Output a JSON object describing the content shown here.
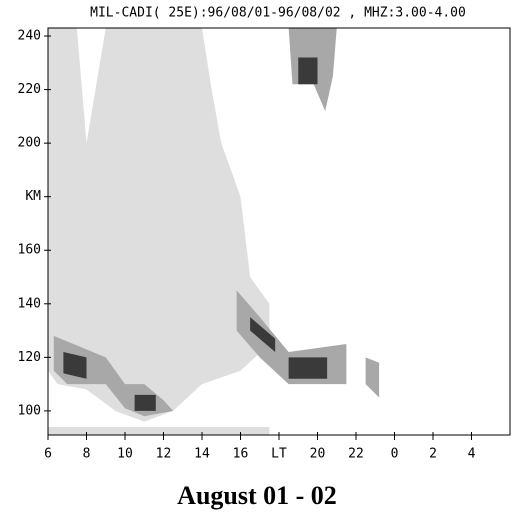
{
  "chart_data": {
    "type": "area",
    "title": "MIL-CADI( 25E):96/08/01-96/08/02 , MHZ:3.00-4.00",
    "caption": "August 01 - 02",
    "xlim": [
      6,
      30
    ],
    "ylim": [
      91,
      243
    ],
    "xticks": [
      6,
      8,
      10,
      12,
      14,
      16,
      {
        "value": 18,
        "label": "LT"
      },
      20,
      22,
      {
        "value": 24,
        "label": "0"
      },
      {
        "value": 26,
        "label": "2"
      },
      {
        "value": 28,
        "label": "4"
      }
    ],
    "yticks": [
      100,
      120,
      140,
      160,
      {
        "value": 180,
        "label": "KM"
      },
      200,
      220,
      240
    ],
    "series": [
      {
        "color": "#dedede",
        "x": [
          6,
          7.5,
          8,
          9,
          14,
          14.5,
          15,
          16,
          16.5,
          17.5,
          17.5,
          16,
          14,
          12.5,
          11,
          9.5,
          8,
          6.5,
          6
        ],
        "y": [
          243,
          243,
          200,
          243,
          243,
          220,
          200,
          180,
          150,
          140,
          125,
          115,
          110,
          100,
          96,
          100,
          108,
          110,
          115
        ]
      },
      {
        "color": "#dedede",
        "x": [
          6,
          17.5,
          17.5,
          6
        ],
        "y": [
          94,
          94,
          91,
          91
        ]
      },
      {
        "color": "#a8a8a8",
        "x": [
          18.5,
          21,
          20.8,
          20.4,
          19.8,
          18.7
        ],
        "y": [
          243,
          243,
          225,
          212,
          222,
          222
        ]
      },
      {
        "color": "#a8a8a8",
        "x": [
          6.3,
          9,
          10,
          11,
          12,
          12.5,
          11,
          10,
          9,
          7,
          6.3
        ],
        "y": [
          128,
          120,
          110,
          110,
          104,
          100,
          98,
          101,
          110,
          110,
          115
        ]
      },
      {
        "color": "#a8a8a8",
        "x": [
          15.8,
          17,
          18.5,
          21.5,
          21.5,
          18.5,
          17,
          15.8
        ],
        "y": [
          145,
          135,
          122,
          125,
          110,
          110,
          120,
          130
        ]
      },
      {
        "color": "#a8a8a8",
        "x": [
          22.5,
          23.2,
          23.2,
          22.5
        ],
        "y": [
          120,
          118,
          105,
          110
        ]
      },
      {
        "color": "#3a3a3a",
        "x": [
          6.8,
          8,
          8,
          6.8
        ],
        "y": [
          122,
          120,
          112,
          114
        ]
      },
      {
        "color": "#3a3a3a",
        "x": [
          10.5,
          11.6,
          11.6,
          10.5
        ],
        "y": [
          106,
          106,
          100,
          100
        ]
      },
      {
        "color": "#3a3a3a",
        "x": [
          18.5,
          20.5,
          20.5,
          18.5
        ],
        "y": [
          120,
          120,
          112,
          112
        ]
      },
      {
        "color": "#3a3a3a",
        "x": [
          19,
          20,
          20,
          19
        ],
        "y": [
          232,
          232,
          222,
          222
        ]
      },
      {
        "color": "#3a3a3a",
        "x": [
          16.5,
          17.8,
          17.8,
          16.5
        ],
        "y": [
          135,
          127,
          122,
          130
        ]
      }
    ]
  }
}
